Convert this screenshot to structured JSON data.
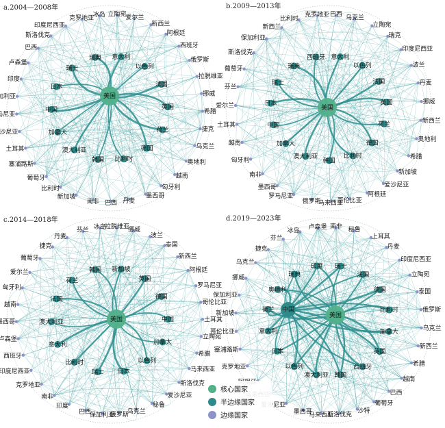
{
  "colors": {
    "edge": "#3a9c9c",
    "core": "#52b08a",
    "semi": "#2f8a8a",
    "periphery": "#8d93c9"
  },
  "legend": [
    {
      "label": "核心国家",
      "category": "core"
    },
    {
      "label": "半边缘国家",
      "category": "semi"
    },
    {
      "label": "边缘国家",
      "category": "periphery"
    }
  ],
  "panels": [
    {
      "title": "a.2004—2008年",
      "hub": "美国",
      "inner": [
        "意大利",
        "以色列",
        "法国",
        "英国",
        "荷兰",
        "德国",
        "比利时",
        "韩国",
        "澳大利亚",
        "加拿大",
        "中国",
        "日本",
        "瑞士",
        "瑞典"
      ],
      "outer": [
        "立陶宛",
        "爱尔兰",
        "新西兰",
        "阿根廷",
        "西班牙",
        "俄罗斯",
        "拉脱维亚",
        "挪威",
        "希腊",
        "捷克",
        "乌克兰",
        "奥地利",
        "越南",
        "匈牙利",
        "墨西哥",
        "丹麦",
        "巴西",
        "南非",
        "新加坡",
        "比利时",
        "葡萄牙",
        "塞浦路斯",
        "土耳其",
        "爱沙尼亚",
        "罗马尼亚",
        "保加利亚",
        "印度",
        "卢森堡",
        "巴西",
        "斯洛伐克",
        "印度尼西亚",
        "克罗地亚",
        "冰岛"
      ]
    },
    {
      "title": "b.2009—2013年",
      "hub": "美国",
      "inner": [
        "意大利",
        "以色列",
        "法国",
        "英国",
        "荷兰",
        "德国",
        "比利时",
        "韩国",
        "澳大利亚",
        "加拿大",
        "中国",
        "日本",
        "瑞士",
        "瑞典",
        "西班牙"
      ],
      "outer": [
        "巴西",
        "乌克兰",
        "立陶宛",
        "瑞克",
        "印度尼西亚",
        "波兰",
        "丹麦",
        "挪威",
        "新西兰",
        "奥地利",
        "希腊",
        "新加坡",
        "爱沙尼亚",
        "阿根廷",
        "哥伦比亚",
        "马来西亚",
        "俄罗斯",
        "罗马尼亚",
        "墨西哥",
        "南非",
        "匈牙利",
        "越南",
        "土耳其",
        "爱尔兰",
        "芬兰",
        "葡萄牙",
        "斯洛伐克",
        "保加利亚",
        "新西兰",
        "比利时",
        "克罗地亚"
      ]
    },
    {
      "title": "c.2014—2018年",
      "hub": "美国",
      "inner": [
        "新加坡",
        "英国",
        "德国",
        "中国",
        "加拿大",
        "以色列",
        "日本",
        "瑞士",
        "比利时",
        "意大利",
        "澳大利亚",
        "法国",
        "荷兰",
        "韩国"
      ],
      "outer": [
        "拉脱维亚",
        "挪威",
        "波兰",
        "泰国",
        "新西兰",
        "阿根廷",
        "罗马尼亚",
        "哥伦比亚",
        "土耳其",
        "立陶宛",
        "希腊",
        "马来西亚",
        "斯洛伐克",
        "爱沙尼亚",
        "秘鲁",
        "乌克兰",
        "俄罗斯",
        "保加利亚",
        "巴西",
        "印度",
        "南非",
        "克罗地亚",
        "印度尼西亚",
        "西班牙",
        "卢森堡",
        "墨西哥",
        "越南",
        "匈牙利",
        "爱尔兰",
        "葡萄牙",
        "捷克",
        "丹麦",
        "芬兰",
        "冰岛"
      ]
    },
    {
      "title": "d.2019—2023年",
      "hub": "美国",
      "second_hub": "中国",
      "inner": [
        "瑞士",
        "法国",
        "德国",
        "比利时",
        "加拿大",
        "英国",
        "西班牙",
        "韩国",
        "澳大利亚",
        "以色列",
        "日本",
        "意大利",
        "荷兰",
        "奥地利",
        "瑞典",
        "印度"
      ],
      "outer": [
        "南非",
        "秘鲁",
        "上耳其",
        "丹麦",
        "印度尼西亚",
        "立陶宛",
        "泰国",
        "俄罗斯",
        "乌克兰",
        "新西兰",
        "希腊",
        "越南",
        "巴西",
        "葡萄牙",
        "沙特",
        "斯洛伐克",
        "马来西亚",
        "墨西哥",
        "爱沙尼亚",
        "马来西亚",
        "阿根廷",
        "克罗地亚",
        "塞浦路斯",
        "哥伦比亚",
        "新加坡",
        "保加利亚",
        "挪威",
        "乌克兰",
        "捷克",
        "芬兰",
        "冰岛",
        "卢森堡"
      ]
    }
  ]
}
